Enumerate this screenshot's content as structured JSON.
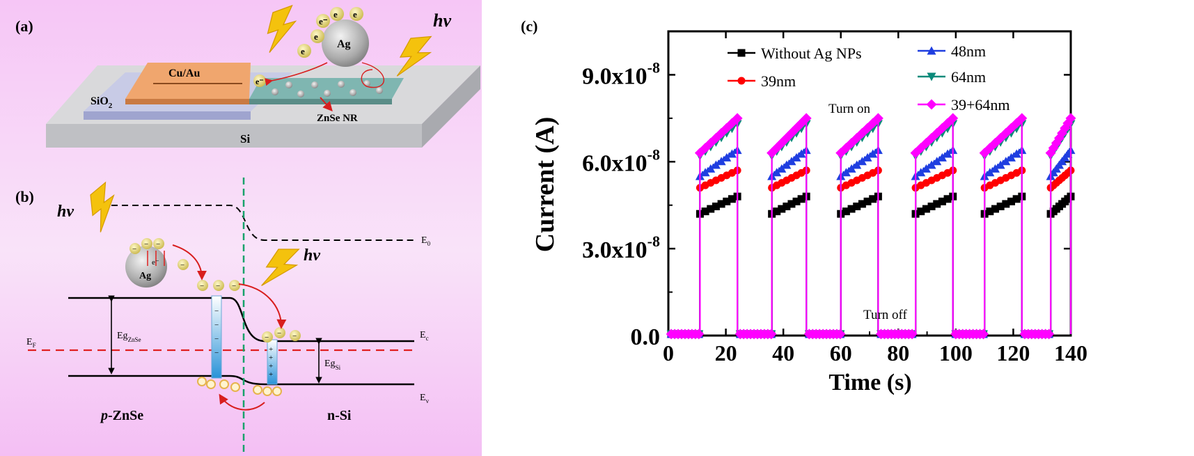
{
  "panel_a": {
    "label": "(a)",
    "hv": "hv",
    "ag": "Ag",
    "electron": "e",
    "electron_minus": "e⁻",
    "cu_au": "Cu/Au",
    "sio2": "SiO",
    "sio2_sub": "2",
    "znse_nr": "ZnSe NR",
    "si": "Si"
  },
  "panel_b": {
    "label": "(b)",
    "hv": "hv",
    "ag": "Ag",
    "electron_minus": "e⁻",
    "minus": "−",
    "e0": "E",
    "e0_sub": "0",
    "ec": "E",
    "ec_sub": "c",
    "ev": "E",
    "ev_sub": "v",
    "ef": "E",
    "ef_sub": "F",
    "eg_znse": "Eg",
    "eg_znse_sub": "ZnSe",
    "eg_si": "Eg",
    "eg_si_sub": "Si",
    "p_prefix": "p",
    "p_znse": "-ZnSe",
    "n_si": "n-Si",
    "plus": "+"
  },
  "panel_c": {
    "label": "(c)",
    "turn_on": "Turn on",
    "turn_off": "Turn off",
    "x_ticks": [
      "0",
      "20",
      "40",
      "60",
      "80",
      "100",
      "120",
      "140"
    ],
    "y_ticks": [
      {
        "base": "0.0",
        "exp": ""
      },
      {
        "base": "3.0x10",
        "exp": "-8"
      },
      {
        "base": "6.0x10",
        "exp": "-8"
      },
      {
        "base": "9.0x10",
        "exp": "-8"
      }
    ]
  },
  "chart_data": {
    "type": "line",
    "title": "",
    "xlabel": "Time (s)",
    "ylabel": "Current (A)",
    "xlim": [
      0,
      140
    ],
    "ylim": [
      0,
      1.05e-07
    ],
    "grid": false,
    "legend": "top, two columns",
    "on_off_cycles": [
      [
        11,
        24
      ],
      [
        36,
        48
      ],
      [
        60,
        73
      ],
      [
        86,
        99
      ],
      [
        110,
        123
      ],
      [
        133,
        140
      ]
    ],
    "series": [
      {
        "name": "Without Ag NPs",
        "color": "#000000",
        "marker": "square",
        "dark": 5e-10,
        "on_start": 4.2e-08,
        "on_end": 4.8e-08
      },
      {
        "name": "39nm",
        "color": "#ff0000",
        "marker": "circle",
        "dark": 5e-10,
        "on_start": 5.1e-08,
        "on_end": 5.7e-08
      },
      {
        "name": "48nm",
        "color": "#1f3ee0",
        "marker": "triangle-up",
        "dark": 5e-10,
        "on_start": 5.5e-08,
        "on_end": 6.4e-08
      },
      {
        "name": "64nm",
        "color": "#0a8a7a",
        "marker": "triangle-down",
        "dark": 5e-10,
        "on_start": 6.2e-08,
        "on_end": 7.3e-08
      },
      {
        "name": "39+64nm",
        "color": "#ff00ff",
        "marker": "diamond",
        "dark": 5e-10,
        "on_start": 6.3e-08,
        "on_end": 7.5e-08
      }
    ]
  }
}
